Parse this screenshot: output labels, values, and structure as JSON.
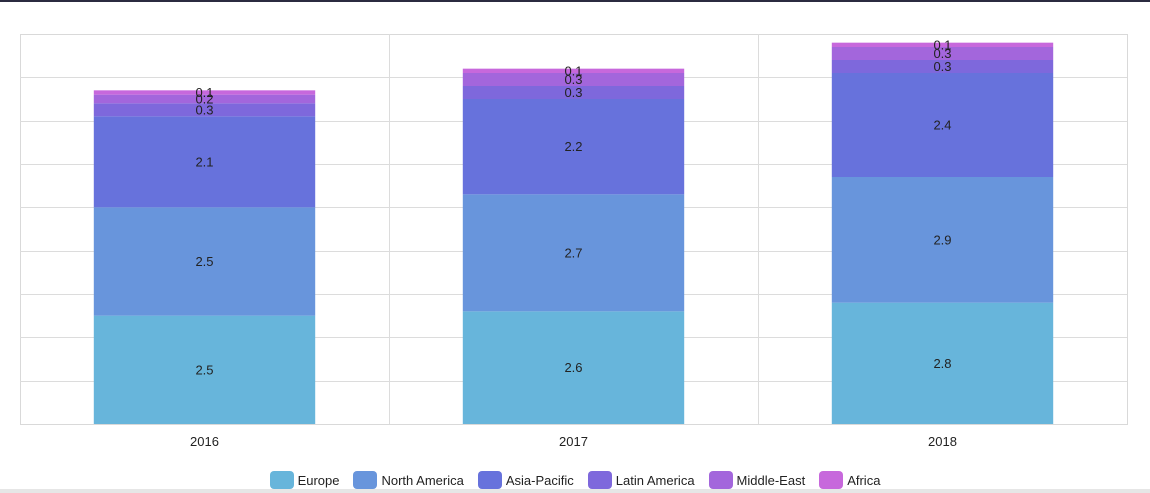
{
  "chart_data": {
    "type": "bar",
    "stacked": true,
    "categories": [
      "2016",
      "2017",
      "2018"
    ],
    "series": [
      {
        "name": "Europe",
        "color": "#67b5db",
        "values": [
          2.5,
          2.6,
          2.8
        ]
      },
      {
        "name": "North America",
        "color": "#6895dc",
        "values": [
          2.5,
          2.7,
          2.9
        ]
      },
      {
        "name": "Asia-Pacific",
        "color": "#6772dc",
        "values": [
          2.1,
          2.2,
          2.4
        ]
      },
      {
        "name": "Latin America",
        "color": "#7e68dc",
        "values": [
          0.3,
          0.3,
          0.3
        ]
      },
      {
        "name": "Middle-East",
        "color": "#a366dc",
        "values": [
          0.2,
          0.3,
          0.3
        ]
      },
      {
        "name": "Africa",
        "color": "#c768dc",
        "values": [
          0.1,
          0.1,
          0.1
        ]
      }
    ],
    "ylim": [
      0,
      9
    ],
    "grid": true,
    "legend_position": "bottom-center",
    "title": "",
    "xlabel": "",
    "ylabel": ""
  }
}
